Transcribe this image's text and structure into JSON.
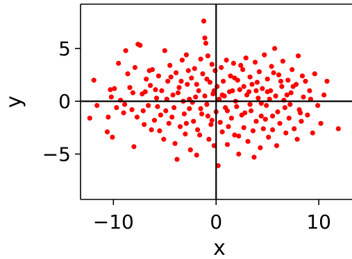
{
  "chart_data": {
    "type": "scatter",
    "title": "",
    "xlabel": "x",
    "ylabel": "y",
    "xlim": [
      -13.2,
      13.3
    ],
    "ylim": [
      -9.3,
      9.2
    ],
    "x_ticks": [
      -10,
      0,
      10
    ],
    "x_tick_labels": [
      "−10",
      "0",
      "10"
    ],
    "y_ticks": [
      -5,
      0,
      5
    ],
    "y_tick_labels": [
      "−5",
      "0",
      "5"
    ],
    "grid": false,
    "reference_lines": {
      "x": 0,
      "y": 0
    },
    "colors": {
      "points": "#ff0000",
      "axes": "#000000",
      "background": "#ffffff"
    },
    "series": [
      {
        "points": [
          [
            -12.3,
            -1.6
          ],
          [
            -11.9,
            2.0
          ],
          [
            -10.3,
            1.1
          ],
          [
            -10.5,
            -1.5
          ],
          [
            -10.6,
            -2.9
          ],
          [
            -10.1,
            -3.4
          ],
          [
            -10.2,
            0.4
          ],
          [
            -9.9,
            1.2
          ],
          [
            -9.5,
            3.6
          ],
          [
            -9.3,
            0.1
          ],
          [
            -9.0,
            -1.1
          ],
          [
            -8.8,
            4.8
          ],
          [
            -8.6,
            2.6
          ],
          [
            -8.4,
            1.3
          ],
          [
            -8.2,
            -0.8
          ],
          [
            -8.0,
            -4.3
          ],
          [
            -7.9,
            3.2
          ],
          [
            -7.6,
            5.4
          ],
          [
            -7.4,
            5.3
          ],
          [
            -7.2,
            0.7
          ],
          [
            -7.0,
            -2.2
          ],
          [
            -6.8,
            2.1
          ],
          [
            -6.6,
            -0.4
          ],
          [
            -6.4,
            1.5
          ],
          [
            -6.2,
            3.0
          ],
          [
            -6.0,
            -1.8
          ],
          [
            -5.8,
            0.3
          ],
          [
            -5.6,
            2.4
          ],
          [
            -5.5,
            -2.8
          ],
          [
            -5.3,
            1.0
          ],
          [
            -5.1,
            -3.6
          ],
          [
            -5.0,
            4.8
          ],
          [
            -4.9,
            -0.9
          ],
          [
            -4.7,
            1.9
          ],
          [
            -4.5,
            3.4
          ],
          [
            -4.3,
            -1.5
          ],
          [
            -4.2,
            0.6
          ],
          [
            -4.0,
            -4.0
          ],
          [
            -3.9,
            2.7
          ],
          [
            -3.8,
            -5.5
          ],
          [
            -3.6,
            1.3
          ],
          [
            -3.5,
            -2.4
          ],
          [
            -3.3,
            3.9
          ],
          [
            -3.2,
            0.0
          ],
          [
            -3.0,
            -3.1
          ],
          [
            -2.9,
            4.4
          ],
          [
            -2.8,
            1.6
          ],
          [
            -2.6,
            -0.7
          ],
          [
            -2.5,
            -4.6
          ],
          [
            -2.4,
            2.2
          ],
          [
            -2.2,
            -1.9
          ],
          [
            -2.1,
            3.1
          ],
          [
            -2.0,
            0.4
          ],
          [
            -1.9,
            -5.1
          ],
          [
            -1.8,
            -2.7
          ],
          [
            -1.7,
            1.0
          ],
          [
            -1.5,
            4.0
          ],
          [
            -1.4,
            -1.2
          ],
          [
            -1.3,
            2.6
          ],
          [
            -1.2,
            7.6
          ],
          [
            -1.1,
            6.0
          ],
          [
            -1.0,
            5.5
          ],
          [
            -0.9,
            -0.3
          ],
          [
            -0.8,
            4.3
          ],
          [
            -0.7,
            -3.6
          ],
          [
            -0.6,
            1.8
          ],
          [
            -0.5,
            -2.2
          ],
          [
            -0.4,
            3.5
          ],
          [
            -0.3,
            0.7
          ],
          [
            -0.2,
            -4.2
          ],
          [
            -0.1,
            2.9
          ],
          [
            0.0,
            -1.0
          ],
          [
            0.1,
            1.4
          ],
          [
            0.2,
            -6.1
          ],
          [
            0.3,
            0.2
          ],
          [
            0.5,
            3.2
          ],
          [
            0.6,
            -2.9
          ],
          [
            0.7,
            1.9
          ],
          [
            0.9,
            -0.6
          ],
          [
            1.0,
            3.9
          ],
          [
            1.1,
            -4.1
          ],
          [
            1.3,
            0.9
          ],
          [
            1.4,
            2.4
          ],
          [
            1.5,
            -1.6
          ],
          [
            1.7,
            3.6
          ],
          [
            1.8,
            -3.2
          ],
          [
            1.9,
            0.0
          ],
          [
            2.1,
            2.0
          ],
          [
            2.2,
            -5.0
          ],
          [
            2.3,
            1.1
          ],
          [
            2.5,
            -1.3
          ],
          [
            2.6,
            3.0
          ],
          [
            2.7,
            -2.5
          ],
          [
            2.9,
            4.1
          ],
          [
            3.0,
            0.6
          ],
          [
            3.1,
            -3.8
          ],
          [
            3.3,
            2.3
          ],
          [
            3.4,
            -0.9
          ],
          [
            3.5,
            1.6
          ],
          [
            3.7,
            -5.3
          ],
          [
            3.8,
            3.7
          ],
          [
            3.9,
            -1.9
          ],
          [
            4.1,
            0.3
          ],
          [
            4.2,
            2.8
          ],
          [
            4.3,
            -4.4
          ],
          [
            4.5,
            1.2
          ],
          [
            4.6,
            -2.6
          ],
          [
            4.7,
            4.4
          ],
          [
            4.9,
            -0.4
          ],
          [
            5.0,
            2.1
          ],
          [
            5.1,
            -3.4
          ],
          [
            5.3,
            1.0
          ],
          [
            5.4,
            3.3
          ],
          [
            5.5,
            -1.4
          ],
          [
            5.7,
            5.0
          ],
          [
            5.8,
            0.5
          ],
          [
            5.9,
            -4.2
          ],
          [
            6.1,
            2.5
          ],
          [
            6.2,
            -2.1
          ],
          [
            6.4,
            1.4
          ],
          [
            6.5,
            3.8
          ],
          [
            6.7,
            -0.6
          ],
          [
            6.8,
            -3.0
          ],
          [
            7.0,
            2.0
          ],
          [
            7.1,
            -1.6
          ],
          [
            7.3,
            0.8
          ],
          [
            7.4,
            3.0
          ],
          [
            7.6,
            -2.6
          ],
          [
            7.8,
            1.6
          ],
          [
            8.0,
            4.3
          ],
          [
            8.1,
            -0.8
          ],
          [
            8.3,
            -1.9
          ],
          [
            8.5,
            0.4
          ],
          [
            8.7,
            1.9
          ],
          [
            8.9,
            -1.3
          ],
          [
            9.1,
            1.0
          ],
          [
            9.4,
            -3.0
          ],
          [
            9.6,
            2.6
          ],
          [
            9.9,
            -0.4
          ],
          [
            10.2,
            -2.1
          ],
          [
            10.5,
            0.6
          ],
          [
            10.8,
            1.9
          ],
          [
            11.9,
            -2.6
          ],
          [
            -11.6,
            -0.4
          ],
          [
            -9.7,
            -0.6
          ],
          [
            -7.7,
            -1.5
          ],
          [
            -6.9,
            0.9
          ],
          [
            -6.3,
            -2.7
          ],
          [
            -5.7,
            -0.5
          ],
          [
            -4.6,
            -2.1
          ],
          [
            -4.4,
            2.3
          ],
          [
            -3.7,
            0.8
          ],
          [
            -3.1,
            -1.2
          ],
          [
            -2.7,
            2.9
          ],
          [
            -2.3,
            -0.1
          ],
          [
            -1.6,
            -3.2
          ],
          [
            -1.1,
            0.5
          ],
          [
            -0.9,
            2.1
          ],
          [
            -0.4,
            -1.8
          ],
          [
            0.4,
            -2.0
          ],
          [
            0.8,
            0.5
          ],
          [
            1.2,
            -2.4
          ],
          [
            1.6,
            1.0
          ],
          [
            2.0,
            -0.5
          ],
          [
            2.4,
            3.4
          ],
          [
            2.8,
            -1.1
          ],
          [
            3.2,
            0.9
          ],
          [
            3.6,
            -2.8
          ],
          [
            4.0,
            1.8
          ],
          [
            4.4,
            -0.2
          ],
          [
            4.8,
            -1.7
          ],
          [
            5.2,
            0.2
          ],
          [
            5.6,
            2.7
          ],
          [
            6.0,
            -1.0
          ],
          [
            6.6,
            0.1
          ],
          [
            7.2,
            -0.3
          ],
          [
            7.9,
            -3.6
          ],
          [
            8.4,
            2.4
          ],
          [
            -8.9,
            -0.3
          ],
          [
            -8.1,
            0.8
          ],
          [
            -7.1,
            -0.9
          ],
          [
            -6.5,
            2.9
          ],
          [
            -5.9,
            1.1
          ],
          [
            -5.4,
            -1.3
          ],
          [
            -4.8,
            0.2
          ],
          [
            -4.1,
            -0.6
          ],
          [
            -3.4,
            1.9
          ],
          [
            -2.9,
            -2.1
          ],
          [
            -2.6,
            0.2
          ],
          [
            -1.9,
            1.6
          ],
          [
            -1.5,
            -0.7
          ],
          [
            -0.8,
            -1.4
          ],
          [
            -0.2,
            1.0
          ],
          [
            0.6,
            0.6
          ],
          [
            1.1,
            -0.9
          ],
          [
            1.8,
            2.2
          ],
          [
            2.2,
            -3.3
          ],
          [
            2.7,
            1.4
          ],
          [
            3.3,
            -0.3
          ],
          [
            3.9,
            1.0
          ],
          [
            4.4,
            -1.4
          ],
          [
            5.0,
            0.9
          ],
          [
            5.5,
            -2.7
          ],
          [
            6.3,
            1.9
          ],
          [
            6.9,
            0.6
          ],
          [
            7.5,
            1.4
          ],
          [
            8.2,
            -1.1
          ],
          [
            9.2,
            0.2
          ]
        ]
      }
    ]
  }
}
